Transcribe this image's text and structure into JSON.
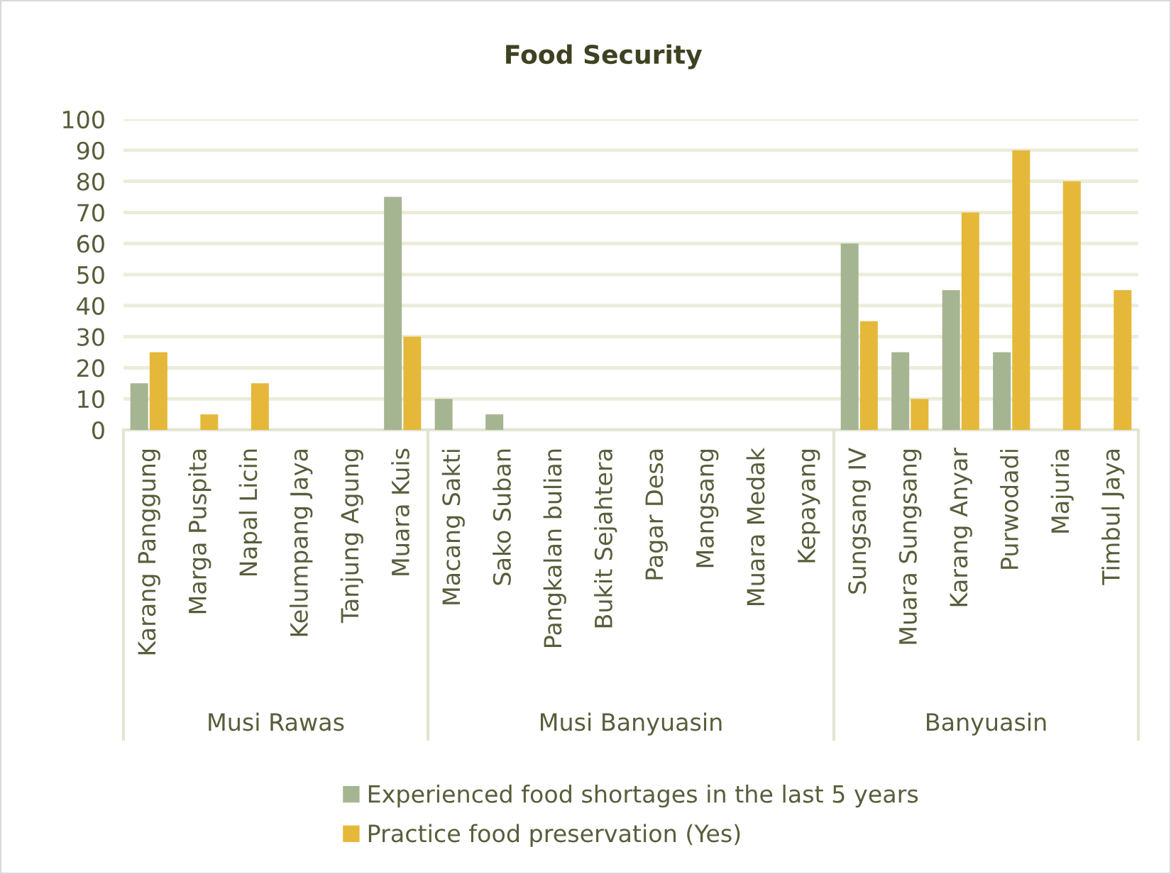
{
  "chart_data": [
    {
      "type": "bar",
      "xlabel": "Musi Rawas",
      "categories": [
        "Karang Panggung",
        "Marga Puspita",
        "Napal Licin",
        "Kelumpang Jaya",
        "Tanjung Agung",
        "Muara Kuis"
      ],
      "series": [
        {
          "name": "Experienced food shortages in the last 5 years",
          "color": "#a5b592",
          "values": [
            15,
            0,
            0,
            0,
            0,
            75
          ]
        },
        {
          "name": "Practice food preservation (Yes)",
          "color": "#e5b83a",
          "values": [
            25,
            5,
            15,
            0,
            0,
            30
          ]
        }
      ],
      "ylim": [
        0,
        100
      ],
      "yticks": [
        0,
        10,
        20,
        30,
        40,
        50,
        60,
        70,
        80,
        90,
        100
      ],
      "grid": "y",
      "legend": "bottom"
    },
    {
      "type": "bar",
      "title": "Food Security",
      "xlabel": "Musi Banyuasin",
      "categories": [
        "Macang Sakti",
        "Sako Suban",
        "Pangkalan bulian",
        "Bukit Sejahtera",
        "Pagar Desa",
        "Mangsang",
        "Muara Medak",
        "Kepayang"
      ],
      "series": [
        {
          "color": "#a5b592",
          "values": [
            10,
            5,
            0,
            0,
            0,
            0,
            0,
            0
          ]
        },
        {
          "color": "#e5b83a",
          "values": [
            0,
            0,
            0,
            0,
            0,
            0,
            0,
            0
          ]
        }
      ],
      "ylim": [
        0,
        100
      ],
      "yticks": [
        0,
        10,
        20,
        30,
        40,
        50,
        60,
        70,
        80,
        90,
        100
      ],
      "grid": "y",
      "tick_labels": "x"
    },
    {
      "type": "bar",
      "xlabel": "Banyuasin",
      "categories": [
        "Sungsang IV",
        "Muara Sungsang",
        "Karang Anyar",
        "Purwodadi",
        "Majuria",
        "Timbul Jaya"
      ],
      "series": [
        {
          "color": "#a5b592",
          "values": [
            60,
            25,
            45,
            25,
            0,
            0
          ]
        },
        {
          "color": "#e5b83a",
          "values": [
            35,
            10,
            70,
            90,
            80,
            45
          ]
        }
      ],
      "ylim": [
        0,
        100
      ],
      "yticks": [
        0,
        10,
        20,
        30,
        40,
        50,
        60,
        70,
        80,
        90,
        100
      ],
      "grid": "y",
      "tick_labels": "x"
    }
  ]
}
